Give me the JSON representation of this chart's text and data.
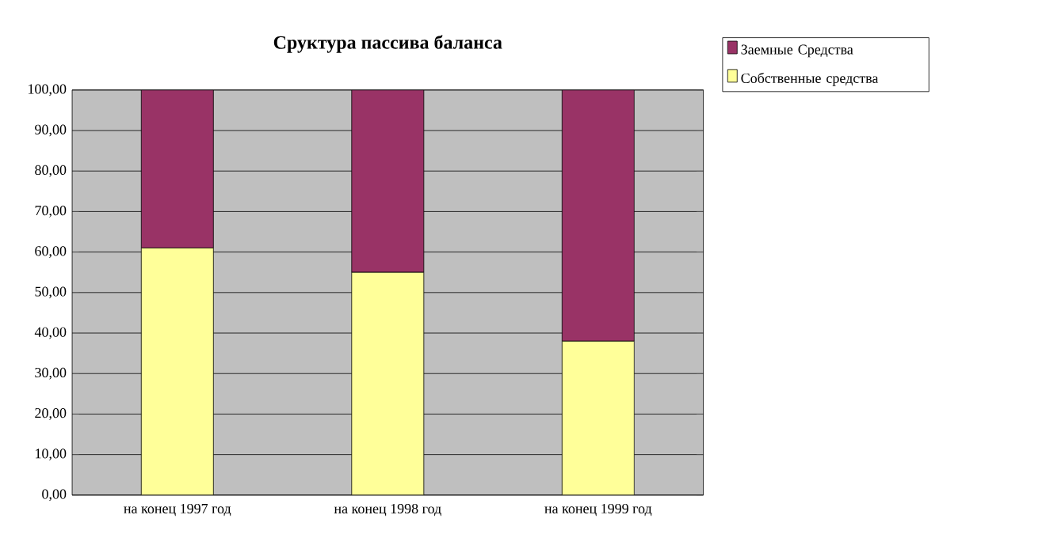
{
  "chart_data": {
    "type": "bar",
    "stacked": true,
    "title": "Сруктура пассива баланса",
    "categories": [
      "на конец 1997 год",
      "на конец 1998 год",
      "на конец 1999 год"
    ],
    "series": [
      {
        "name": "Собственные средства",
        "color": "#ffff99",
        "values": [
          61,
          55,
          38
        ]
      },
      {
        "name": "Заемные Средства",
        "color": "#993366",
        "values": [
          39,
          45,
          62
        ]
      }
    ],
    "ylim": [
      0,
      100
    ],
    "yticks": [
      {
        "value": 0,
        "label": "0,00"
      },
      {
        "value": 10,
        "label": "10,00"
      },
      {
        "value": 20,
        "label": "20,00"
      },
      {
        "value": 30,
        "label": "30,00"
      },
      {
        "value": 40,
        "label": "40,00"
      },
      {
        "value": 50,
        "label": "50,00"
      },
      {
        "value": 60,
        "label": "60,00"
      },
      {
        "value": 70,
        "label": "70,00"
      },
      {
        "value": 80,
        "label": "80,00"
      },
      {
        "value": 90,
        "label": "90,00"
      },
      {
        "value": 100,
        "label": "100,00"
      }
    ],
    "grid": "y",
    "legend": "right"
  }
}
